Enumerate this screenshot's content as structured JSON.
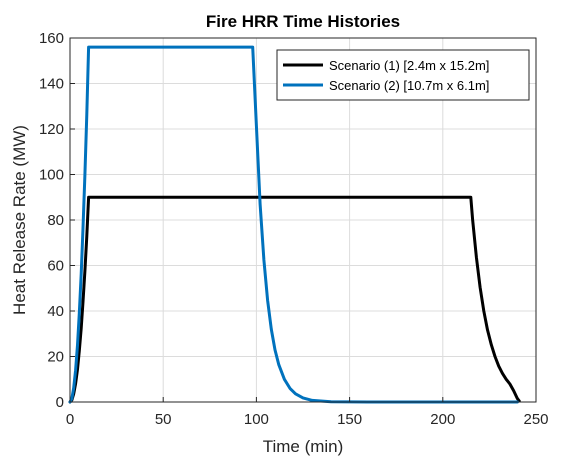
{
  "chart_data": {
    "type": "line",
    "title": "Fire HRR Time Histories",
    "xlabel": "Time (min)",
    "ylabel": "Heat Release Rate (MW)",
    "xlim": [
      0,
      250
    ],
    "ylim": [
      0,
      160
    ],
    "xticks": [
      0,
      50,
      100,
      150,
      200,
      250
    ],
    "yticks": [
      0,
      20,
      40,
      60,
      80,
      100,
      120,
      140,
      160
    ],
    "grid": true,
    "legend_position": "top-right",
    "series": [
      {
        "name": "Scenario (1) [2.4m x 15.2m]",
        "color": "#000000",
        "x": [
          0,
          1,
          2,
          3,
          4,
          5,
          6,
          7,
          8,
          9,
          10,
          215,
          216,
          218,
          220,
          222,
          224,
          226,
          228,
          230,
          232,
          234,
          236,
          238,
          240,
          241
        ],
        "y": [
          0,
          0.9,
          3.6,
          8.1,
          14.4,
          22.5,
          32.4,
          44.1,
          57.6,
          72.9,
          90,
          90,
          80.2,
          63.6,
          50.4,
          40.0,
          31.7,
          25.2,
          20.0,
          15.8,
          12.6,
          10.0,
          7.9,
          5.0,
          1.5,
          0.5
        ]
      },
      {
        "name": "Scenario (2) [10.7m x 6.1m]",
        "color": "#0072BD",
        "x": [
          0,
          1,
          2,
          3,
          4,
          5,
          6,
          7,
          8,
          9,
          10,
          98,
          100,
          102,
          104,
          106,
          108,
          110,
          112,
          115,
          118,
          121,
          125,
          130,
          140,
          160,
          200,
          240
        ],
        "y": [
          0,
          1.6,
          6.2,
          14.0,
          25.0,
          39.0,
          56.2,
          76.4,
          99.8,
          126.4,
          156,
          156,
          121.4,
          87.0,
          62.4,
          44.7,
          32.0,
          22.9,
          16.4,
          10.0,
          6.0,
          3.6,
          1.8,
          0.7,
          0.1,
          0,
          0,
          0
        ]
      }
    ]
  }
}
